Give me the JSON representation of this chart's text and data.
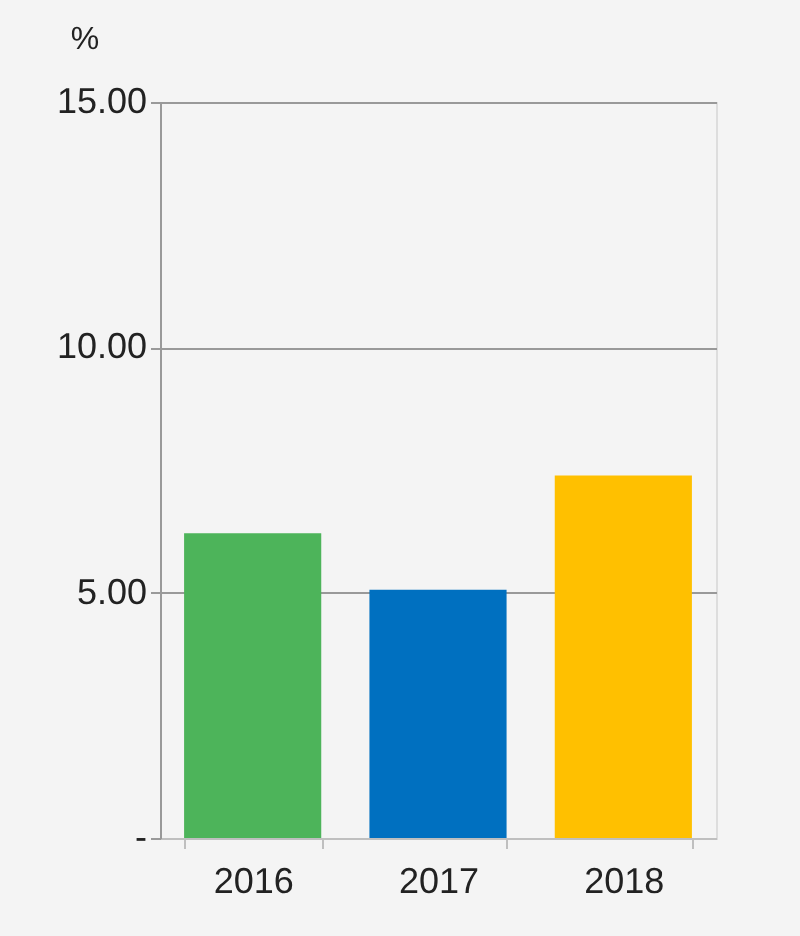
{
  "chart_data": {
    "type": "bar",
    "ylabel": "%",
    "categories": [
      "2016",
      "2017",
      "2018"
    ],
    "values": [
      6.21,
      5.06,
      7.39
    ],
    "colors": [
      "#4db45a",
      "#0070c0",
      "#ffc000"
    ],
    "ylim": [
      0,
      15
    ],
    "yticks": [
      {
        "value": 0,
        "label": "-"
      },
      {
        "value": 5,
        "label": "5.00"
      },
      {
        "value": 10,
        "label": "10.00"
      },
      {
        "value": 15,
        "label": "15.00"
      }
    ],
    "grid": "y"
  }
}
